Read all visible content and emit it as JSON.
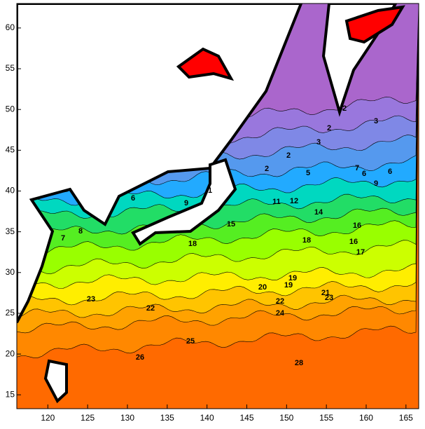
{
  "chart_data": {
    "type": "contour",
    "xlim": [
      116.1,
      166.6
    ],
    "ylim": [
      13.3,
      63.0
    ],
    "xticks": [
      120,
      125,
      130,
      135,
      140,
      145,
      150,
      155,
      160,
      165
    ],
    "yticks": [
      15,
      20,
      25,
      30,
      35,
      40,
      45,
      50,
      55,
      60
    ],
    "contour_labels": [
      2,
      3,
      2,
      2,
      1,
      3,
      2,
      5,
      6,
      7,
      6,
      9,
      8,
      9,
      7,
      6,
      11,
      12,
      14,
      16,
      17,
      18,
      18,
      16,
      15,
      19,
      20,
      19,
      21,
      22,
      22,
      23,
      24,
      23,
      25,
      26,
      28
    ]
  }
}
